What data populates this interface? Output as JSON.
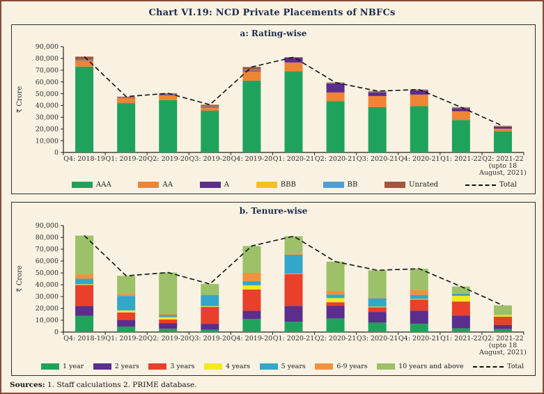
{
  "figure": {
    "title": "Chart VI.19: NCD Private Placements of NBFCs",
    "sources_label": "Sources:",
    "sources_text": "1. Staff calculations 2.  PRIME database.",
    "background_color": "#f9f2e3",
    "outer_border_color": "#8a4a38",
    "panel_border_color": "#2d2d2d",
    "title_color": "#1c2b4a"
  },
  "chart_data": [
    {
      "id": "rating",
      "type": "bar",
      "stacked": true,
      "title": "a: Rating-wise",
      "xlabel": "",
      "ylabel": "₹ Crore",
      "ylim": [
        0,
        90000
      ],
      "ytick_step": 10000,
      "grid": false,
      "legend_position": "bottom",
      "categories": [
        "Q4: 2018-19",
        "Q1: 2019-20",
        "Q2: 2019-20",
        "Q3: 2019-20",
        "Q4: 2019-20",
        "Q1: 2020-21",
        "Q2: 2020-21",
        "Q3: 2020-21",
        "Q4: 2020-21",
        "Q1: 2021-22",
        "Q2: 2021-22\n(upto 18\nAugust, 2021)"
      ],
      "series": [
        {
          "name": "AAA",
          "color": "#1fa35c",
          "values": [
            73000,
            42000,
            44500,
            35500,
            61000,
            69000,
            43500,
            38500,
            39500,
            27500,
            18000
          ]
        },
        {
          "name": "AA",
          "color": "#f08435",
          "values": [
            5000,
            4500,
            4200,
            2800,
            8000,
            7500,
            7500,
            9500,
            9700,
            7500,
            2200
          ]
        },
        {
          "name": "A",
          "color": "#5b2d8c",
          "values": [
            400,
            300,
            700,
            700,
            800,
            4000,
            7800,
            3300,
            3500,
            2700,
            1800
          ]
        },
        {
          "name": "BBB",
          "color": "#f5c021",
          "values": [
            200,
            150,
            200,
            200,
            300,
            100,
            200,
            300,
            300,
            300,
            200
          ]
        },
        {
          "name": "BB",
          "color": "#4f9fd4",
          "values": [
            400,
            150,
            200,
            300,
            400,
            100,
            200,
            200,
            200,
            200,
            150
          ]
        },
        {
          "name": "Unrated",
          "color": "#a3573c",
          "values": [
            2500,
            400,
            500,
            1100,
            2200,
            300,
            300,
            400,
            300,
            300,
            150
          ]
        }
      ],
      "total_line": {
        "name": "Total",
        "style": "dashed",
        "color": "#111111",
        "values": [
          81500,
          47500,
          50300,
          40600,
          72700,
          81000,
          59500,
          52200,
          53500,
          38500,
          22500
        ]
      }
    },
    {
      "id": "tenure",
      "type": "bar",
      "stacked": true,
      "title": "b. Tenure-wise",
      "xlabel": "",
      "ylabel": "₹ Crore",
      "ylim": [
        0,
        90000
      ],
      "ytick_step": 10000,
      "grid": false,
      "legend_position": "bottom",
      "categories": [
        "Q4: 2018-19",
        "Q1: 2019-20",
        "Q2: 2019-20",
        "Q3: 2019-20",
        "Q4: 2019-20",
        "Q1: 2020-21",
        "Q2: 2020-21",
        "Q3: 2020-21",
        "Q4: 2020-21",
        "Q1: 2021-22",
        "Q2: 2021-22\n(upto 18\nAugust, 2021)"
      ],
      "series": [
        {
          "name": "1 year",
          "color": "#1fa35c",
          "values": [
            13800,
            4500,
            2800,
            2000,
            11000,
            8800,
            11500,
            8000,
            7000,
            3200,
            2500
          ]
        },
        {
          "name": "2 years",
          "color": "#5b2d8c",
          "values": [
            8200,
            5500,
            4800,
            5000,
            7000,
            13200,
            10800,
            9000,
            11000,
            10800,
            3600
          ]
        },
        {
          "name": "3 years",
          "color": "#e8402a",
          "values": [
            17800,
            6500,
            3000,
            14200,
            18000,
            27000,
            2900,
            3900,
            9500,
            11800,
            6900
          ]
        },
        {
          "name": "4 years",
          "color": "#f2e921",
          "values": [
            600,
            1800,
            2000,
            700,
            3500,
            300,
            3500,
            600,
            500,
            4800,
            1400
          ]
        },
        {
          "name": "5 years",
          "color": "#33a7c9",
          "values": [
            4600,
            12200,
            1800,
            9300,
            3500,
            16000,
            3000,
            7000,
            3200,
            1900,
            0
          ]
        },
        {
          "name": "6-9 years",
          "color": "#f29140",
          "values": [
            3800,
            2000,
            900,
            200,
            7000,
            700,
            3000,
            700,
            4300,
            0,
            0
          ]
        },
        {
          "name": "10 years and above",
          "color": "#9cc168",
          "values": [
            32700,
            15000,
            35000,
            9200,
            22700,
            15000,
            24800,
            23000,
            18000,
            6000,
            8100
          ]
        }
      ],
      "total_line": {
        "name": "Total",
        "style": "dashed",
        "color": "#111111",
        "values": [
          81500,
          47500,
          50300,
          40600,
          72700,
          81000,
          59500,
          52200,
          53500,
          38500,
          22500
        ]
      }
    }
  ]
}
